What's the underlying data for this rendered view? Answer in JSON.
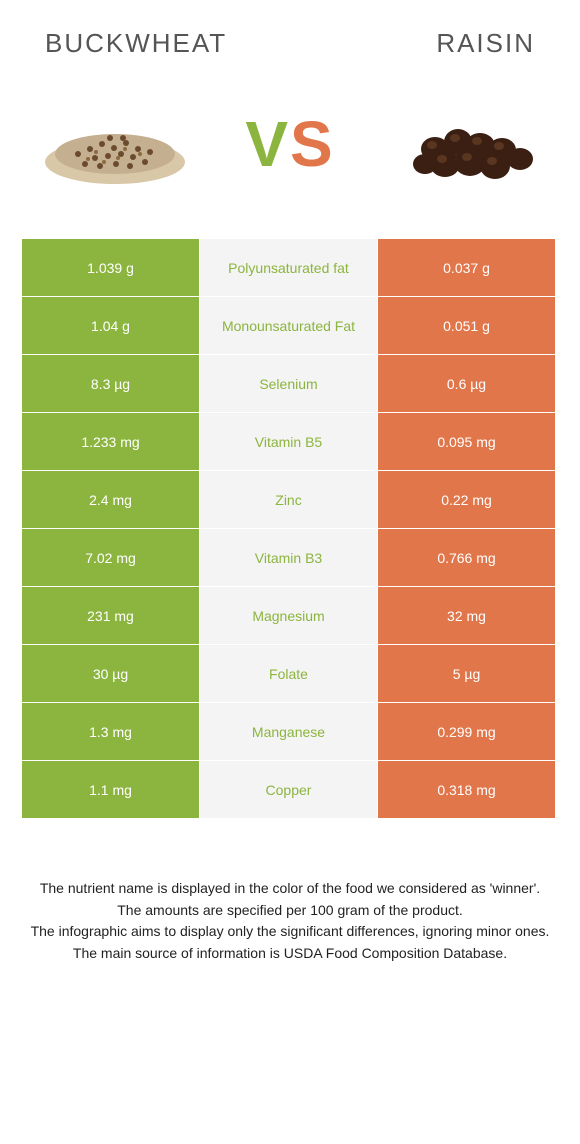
{
  "header": {
    "left_title": "BUCKWHEAT",
    "right_title": "RAISIN"
  },
  "vs": {
    "v": "V",
    "s": "S"
  },
  "colors": {
    "left_bg": "#8cb53f",
    "mid_bg": "#f4f4f4",
    "right_bg": "#e2764b",
    "left_text": "#8cb53f",
    "right_text": "#e2764b"
  },
  "rows": [
    {
      "left": "1.039 g",
      "label": "Polyunsaturated fat",
      "right": "0.037 g",
      "winner": "left"
    },
    {
      "left": "1.04 g",
      "label": "Monounsaturated Fat",
      "right": "0.051 g",
      "winner": "left"
    },
    {
      "left": "8.3 µg",
      "label": "Selenium",
      "right": "0.6 µg",
      "winner": "left"
    },
    {
      "left": "1.233 mg",
      "label": "Vitamin B5",
      "right": "0.095 mg",
      "winner": "left"
    },
    {
      "left": "2.4 mg",
      "label": "Zinc",
      "right": "0.22 mg",
      "winner": "left"
    },
    {
      "left": "7.02 mg",
      "label": "Vitamin B3",
      "right": "0.766 mg",
      "winner": "left"
    },
    {
      "left": "231 mg",
      "label": "Magnesium",
      "right": "32 mg",
      "winner": "left"
    },
    {
      "left": "30 µg",
      "label": "Folate",
      "right": "5 µg",
      "winner": "left"
    },
    {
      "left": "1.3 mg",
      "label": "Manganese",
      "right": "0.299 mg",
      "winner": "left"
    },
    {
      "left": "1.1 mg",
      "label": "Copper",
      "right": "0.318 mg",
      "winner": "left"
    }
  ],
  "footnotes": [
    "The nutrient name is displayed in the color of the food we considered as 'winner'.",
    "The amounts are specified per 100 gram of the product.",
    "The infographic aims to display only the significant differences, ignoring minor ones.",
    "The main source of information is USDA Food Composition Database."
  ]
}
